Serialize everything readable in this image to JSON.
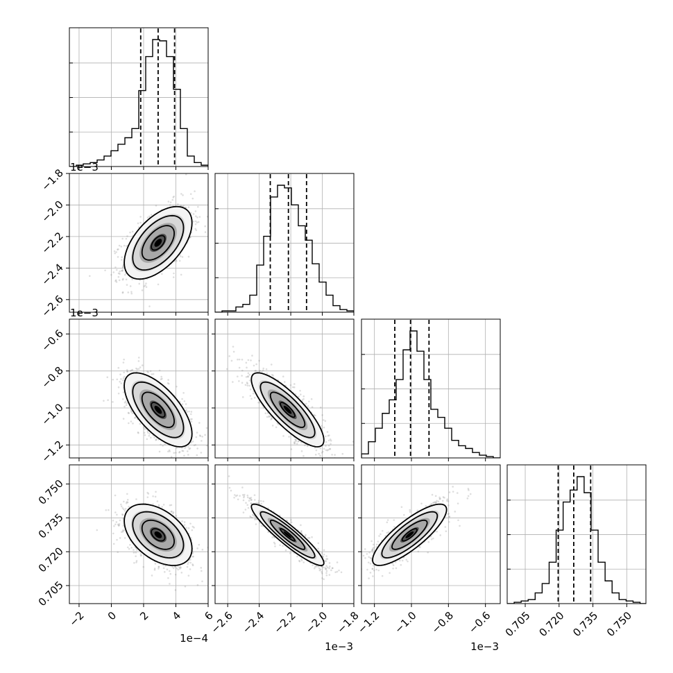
{
  "chart_data": {
    "type": "corner",
    "grid": true,
    "parameters": [
      {
        "range": [
          -2.6,
          6.0
        ],
        "ticks": [
          -2,
          0,
          2,
          4,
          6
        ],
        "tick_labels": [
          "−2",
          "0",
          "2",
          "4",
          "6"
        ],
        "offset_label": "1e−4"
      },
      {
        "range": [
          -2.68,
          -1.8
        ],
        "ticks": [
          -2.6,
          -2.4,
          -2.2,
          -2.0,
          -1.8
        ],
        "tick_labels": [
          "−2.6",
          "−2.4",
          "−2.2",
          "−2.0",
          "−1.8"
        ],
        "offset_label": "1e−3"
      },
      {
        "range": [
          -1.27,
          -0.52
        ],
        "ticks": [
          -1.2,
          -1.0,
          -0.8,
          -0.6
        ],
        "tick_labels": [
          "−1.2",
          "−1.0",
          "−0.8",
          "−0.6"
        ],
        "offset_label": "1e−3"
      },
      {
        "range": [
          0.697,
          0.7585
        ],
        "ticks": [
          0.705,
          0.72,
          0.735,
          0.75
        ],
        "tick_labels": [
          "0.705",
          "0.720",
          "0.735",
          "0.750"
        ],
        "offset_label": ""
      }
    ],
    "marginals": [
      {
        "bin_edges": [
          -2.6,
          -2.17,
          -1.74,
          -1.31,
          -0.88,
          -0.45,
          -0.02,
          0.41,
          0.84,
          1.27,
          1.7,
          2.13,
          2.56,
          2.99,
          3.42,
          3.85,
          4.28,
          4.71,
          5.14,
          5.57,
          6.0
        ],
        "counts": [
          0.0,
          0.01,
          0.02,
          0.03,
          0.05,
          0.08,
          0.12,
          0.17,
          0.22,
          0.29,
          0.58,
          0.84,
          0.97,
          0.96,
          0.84,
          0.59,
          0.29,
          0.08,
          0.03,
          0.01
        ],
        "quantiles": [
          1.82,
          2.9,
          3.92
        ]
      },
      {
        "bin_edges": [
          -2.68,
          -2.636,
          -2.592,
          -2.548,
          -2.504,
          -2.46,
          -2.416,
          -2.372,
          -2.328,
          -2.284,
          -2.24,
          -2.196,
          -2.152,
          -2.108,
          -2.064,
          -2.02,
          -1.976,
          -1.932,
          -1.888,
          -1.844,
          -1.8
        ],
        "counts": [
          0.0,
          0.01,
          0.01,
          0.04,
          0.06,
          0.13,
          0.36,
          0.58,
          0.88,
          0.97,
          0.95,
          0.82,
          0.66,
          0.55,
          0.37,
          0.23,
          0.13,
          0.05,
          0.02,
          0.01
        ],
        "quantiles": [
          -2.33,
          -2.215,
          -2.1
        ]
      },
      {
        "bin_edges": [
          -1.27,
          -1.2325,
          -1.195,
          -1.1575,
          -1.12,
          -1.0825,
          -1.045,
          -1.0075,
          -0.97,
          -0.9325,
          -0.895,
          -0.8575,
          -0.82,
          -0.7825,
          -0.745,
          -0.7075,
          -0.67,
          -0.6325,
          -0.595,
          -0.5575,
          -0.52
        ],
        "counts": [
          0.03,
          0.12,
          0.22,
          0.33,
          0.43,
          0.58,
          0.8,
          0.94,
          0.79,
          0.58,
          0.36,
          0.3,
          0.22,
          0.13,
          0.09,
          0.07,
          0.04,
          0.02,
          0.01,
          0.0
        ],
        "quantiles": [
          -1.09,
          -1.005,
          -0.905
        ]
      },
      {
        "bin_edges": [
          0.697,
          0.7001,
          0.7032,
          0.7063,
          0.7094,
          0.7125,
          0.7156,
          0.7187,
          0.7218,
          0.7249,
          0.728,
          0.7311,
          0.7342,
          0.7373,
          0.7404,
          0.7435,
          0.7466,
          0.7497,
          0.7528,
          0.7559,
          0.759
        ],
        "counts": [
          0.0,
          0.01,
          0.02,
          0.03,
          0.08,
          0.15,
          0.31,
          0.55,
          0.76,
          0.85,
          0.95,
          0.83,
          0.55,
          0.31,
          0.17,
          0.08,
          0.03,
          0.02,
          0.01,
          0.0
        ],
        "quantiles": [
          0.7196,
          0.7265,
          0.734
        ]
      }
    ],
    "joint": [
      {
        "x": 0,
        "y": 1,
        "mean": [
          2.9,
          -2.24
        ],
        "sd": [
          1.05,
          0.115
        ],
        "rho": 0.55
      },
      {
        "x": 0,
        "y": 2,
        "mean": [
          2.9,
          -1.01
        ],
        "sd": [
          1.05,
          0.1
        ],
        "rho": -0.65
      },
      {
        "x": 1,
        "y": 2,
        "mean": [
          -2.22,
          -1.01
        ],
        "sd": [
          0.115,
          0.1
        ],
        "rho": -0.82
      },
      {
        "x": 0,
        "y": 3,
        "mean": [
          2.9,
          0.7275
        ],
        "sd": [
          1.05,
          0.0068
        ],
        "rho": -0.45
      },
      {
        "x": 1,
        "y": 3,
        "mean": [
          -2.22,
          0.7275
        ],
        "sd": [
          0.115,
          0.0068
        ],
        "rho": -0.92
      },
      {
        "x": 2,
        "y": 3,
        "mean": [
          -1.01,
          0.7275
        ],
        "sd": [
          0.1,
          0.0068
        ],
        "rho": 0.82
      }
    ]
  }
}
